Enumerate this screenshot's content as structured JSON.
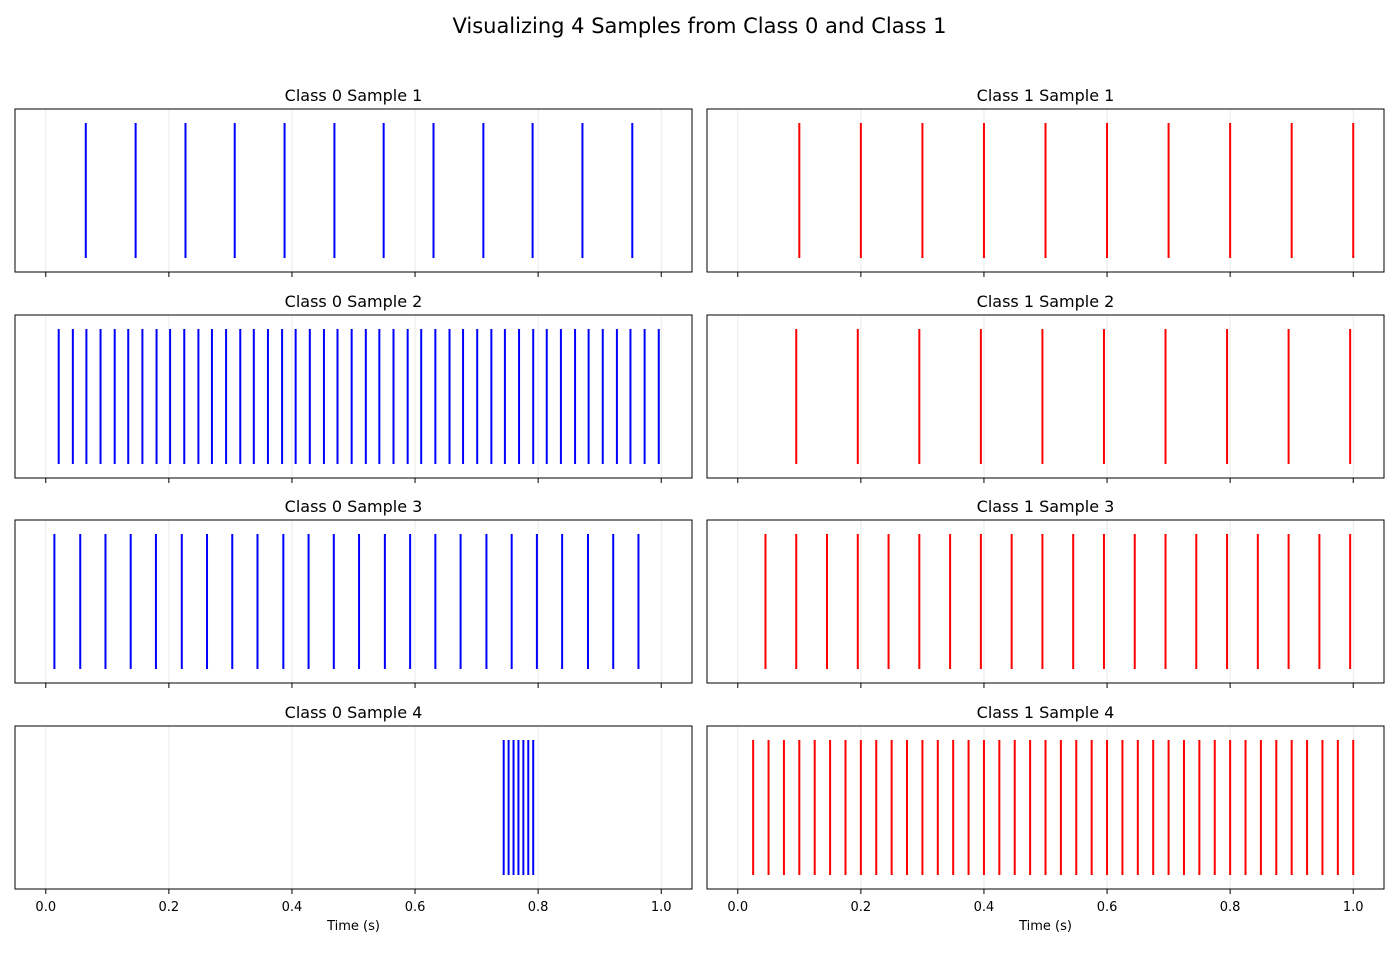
{
  "suptitle": "Visualizing 4 Samples from Class 0 and Class 1",
  "colors": {
    "class0": "#0000ff",
    "class1": "#ff0000",
    "grid": "#e6e6e6",
    "frame": "#000000"
  },
  "chart_data": [
    {
      "type": "eventplot",
      "title": "Class 0 Sample 1",
      "column": 0,
      "row": 0,
      "color": "#0000ff",
      "xlabel": "",
      "xlim": [
        -0.05,
        1.05
      ],
      "xticks": [
        0,
        0.2,
        0.4,
        0.6,
        0.8,
        1.0
      ],
      "xtick_labels": [],
      "grid": true,
      "events": [
        0.065,
        0.146,
        0.227,
        0.307,
        0.388,
        0.469,
        0.549,
        0.63,
        0.711,
        0.791,
        0.872,
        0.953
      ]
    },
    {
      "type": "eventplot",
      "title": "Class 0 Sample 2",
      "column": 0,
      "row": 1,
      "color": "#0000ff",
      "xlabel": "",
      "xlim": [
        -0.05,
        1.05
      ],
      "xticks": [
        0,
        0.2,
        0.4,
        0.6,
        0.8,
        1.0
      ],
      "xtick_labels": [],
      "grid": true,
      "events": [
        0.021,
        0.044,
        0.066,
        0.089,
        0.112,
        0.134,
        0.157,
        0.18,
        0.202,
        0.225,
        0.248,
        0.27,
        0.293,
        0.316,
        0.338,
        0.361,
        0.384,
        0.406,
        0.429,
        0.452,
        0.474,
        0.497,
        0.52,
        0.542,
        0.565,
        0.588,
        0.61,
        0.633,
        0.656,
        0.678,
        0.701,
        0.724,
        0.746,
        0.769,
        0.792,
        0.814,
        0.837,
        0.86,
        0.882,
        0.905,
        0.928,
        0.95,
        0.973,
        0.996
      ]
    },
    {
      "type": "eventplot",
      "title": "Class 0 Sample 3",
      "column": 0,
      "row": 2,
      "color": "#0000ff",
      "xlabel": "",
      "xlim": [
        -0.05,
        1.05
      ],
      "xticks": [
        0,
        0.2,
        0.4,
        0.6,
        0.8,
        1.0
      ],
      "xtick_labels": [],
      "grid": true,
      "events": [
        0.014,
        0.056,
        0.097,
        0.138,
        0.179,
        0.221,
        0.262,
        0.303,
        0.344,
        0.386,
        0.427,
        0.468,
        0.509,
        0.551,
        0.592,
        0.633,
        0.674,
        0.716,
        0.757,
        0.798,
        0.839,
        0.881,
        0.922,
        0.963
      ]
    },
    {
      "type": "eventplot",
      "title": "Class 0 Sample 4",
      "column": 0,
      "row": 3,
      "color": "#0000ff",
      "xlabel": "Time (s)",
      "xlim": [
        -0.05,
        1.05
      ],
      "xticks": [
        0,
        0.2,
        0.4,
        0.6,
        0.8,
        1.0
      ],
      "xtick_labels": [
        "0.0",
        "0.2",
        "0.4",
        "0.6",
        "0.8",
        "1.0"
      ],
      "grid": true,
      "events": [
        0.744,
        0.752,
        0.76,
        0.768,
        0.776,
        0.784,
        0.792
      ]
    },
    {
      "type": "eventplot",
      "title": "Class 1 Sample 1",
      "column": 1,
      "row": 0,
      "color": "#ff0000",
      "xlabel": "",
      "xlim": [
        -0.05,
        1.05
      ],
      "xticks": [
        0,
        0.2,
        0.4,
        0.6,
        0.8,
        1.0
      ],
      "xtick_labels": [],
      "grid": true,
      "events": [
        0.1,
        0.2,
        0.3,
        0.4,
        0.5,
        0.6,
        0.7,
        0.8,
        0.9,
        1.0
      ]
    },
    {
      "type": "eventplot",
      "title": "Class 1 Sample 2",
      "column": 1,
      "row": 1,
      "color": "#ff0000",
      "xlabel": "",
      "xlim": [
        -0.05,
        1.05
      ],
      "xticks": [
        0,
        0.2,
        0.4,
        0.6,
        0.8,
        1.0
      ],
      "xtick_labels": [],
      "grid": true,
      "events": [
        0.095,
        0.195,
        0.295,
        0.395,
        0.495,
        0.595,
        0.695,
        0.795,
        0.895,
        0.995
      ]
    },
    {
      "type": "eventplot",
      "title": "Class 1 Sample 3",
      "column": 1,
      "row": 2,
      "color": "#ff0000",
      "xlabel": "",
      "xlim": [
        -0.05,
        1.05
      ],
      "xticks": [
        0,
        0.2,
        0.4,
        0.6,
        0.8,
        1.0
      ],
      "xtick_labels": [],
      "grid": true,
      "events": [
        0.045,
        0.095,
        0.145,
        0.195,
        0.245,
        0.295,
        0.345,
        0.395,
        0.445,
        0.495,
        0.545,
        0.595,
        0.645,
        0.695,
        0.745,
        0.795,
        0.845,
        0.895,
        0.945,
        0.995
      ]
    },
    {
      "type": "eventplot",
      "title": "Class 1 Sample 4",
      "column": 1,
      "row": 3,
      "color": "#ff0000",
      "xlabel": "Time (s)",
      "xlim": [
        -0.05,
        1.05
      ],
      "xticks": [
        0,
        0.2,
        0.4,
        0.6,
        0.8,
        1.0
      ],
      "xtick_labels": [
        "0.0",
        "0.2",
        "0.4",
        "0.6",
        "0.8",
        "1.0"
      ],
      "grid": true,
      "events": [
        0.025,
        0.05,
        0.075,
        0.1,
        0.125,
        0.15,
        0.175,
        0.2,
        0.225,
        0.25,
        0.275,
        0.3,
        0.325,
        0.35,
        0.375,
        0.4,
        0.425,
        0.45,
        0.475,
        0.5,
        0.525,
        0.55,
        0.575,
        0.6,
        0.625,
        0.65,
        0.675,
        0.7,
        0.725,
        0.75,
        0.775,
        0.8,
        0.825,
        0.85,
        0.875,
        0.9,
        0.925,
        0.95,
        0.975,
        1.0
      ]
    }
  ]
}
